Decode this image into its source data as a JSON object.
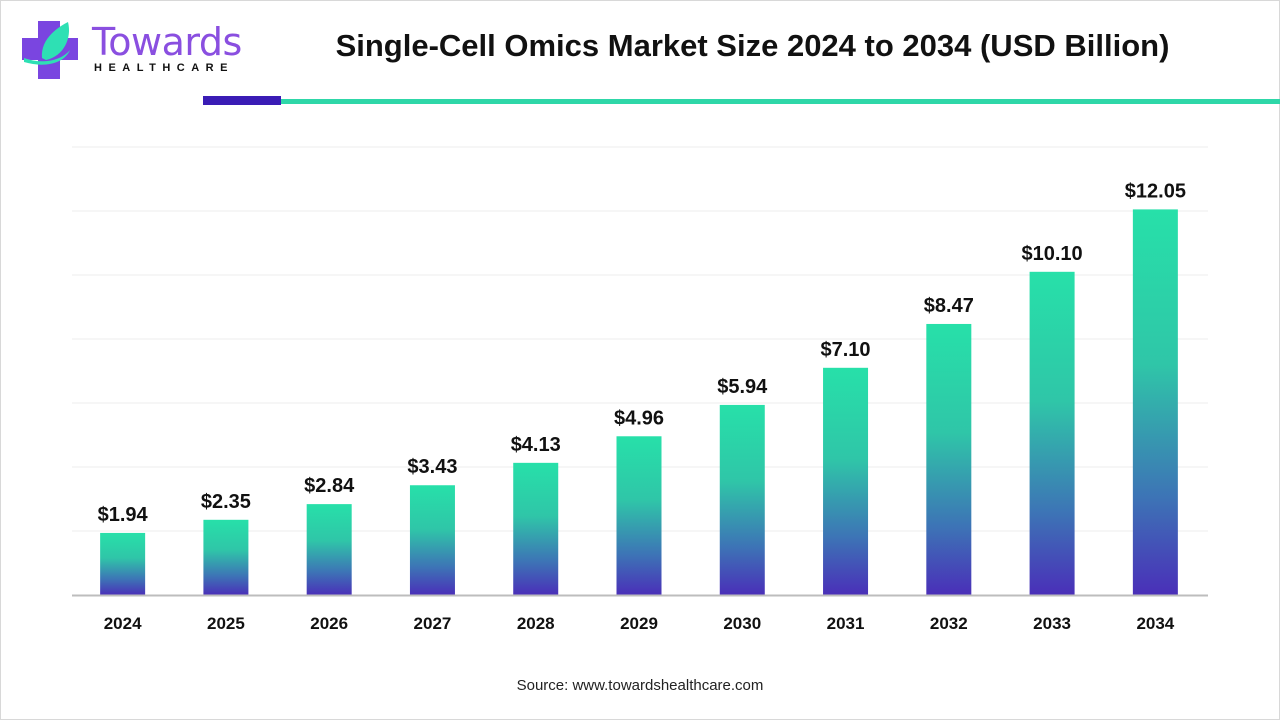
{
  "brand": {
    "name": "Towards",
    "tagline": "HEALTHCARE"
  },
  "title": "Single-Cell Omics Market Size 2024 to 2034 (USD Billion)",
  "source": "Source: www.towardshealthcare.com",
  "colors": {
    "accent_purple": "#3a1cb5",
    "accent_green": "#2ed7a8",
    "bar_top": "#27e0a9",
    "bar_bottom": "#4a2fb8"
  },
  "chart_data": {
    "type": "bar",
    "title": "Single-Cell Omics Market Size 2024 to 2034 (USD Billion)",
    "categories": [
      "2024",
      "2025",
      "2026",
      "2027",
      "2028",
      "2029",
      "2030",
      "2031",
      "2032",
      "2033",
      "2034"
    ],
    "values": [
      1.94,
      2.35,
      2.84,
      3.43,
      4.13,
      4.96,
      5.94,
      7.1,
      8.47,
      10.1,
      12.05
    ],
    "data_labels": [
      "$1.94",
      "$2.35",
      "$2.84",
      "$3.43",
      "$4.13",
      "$4.96",
      "$5.94",
      "$7.10",
      "$8.47",
      "$10.10",
      "$12.05"
    ],
    "xlabel": "",
    "ylabel": "",
    "ylim": [
      0,
      14
    ],
    "grid": true,
    "y_axis_labels_shown": false
  }
}
